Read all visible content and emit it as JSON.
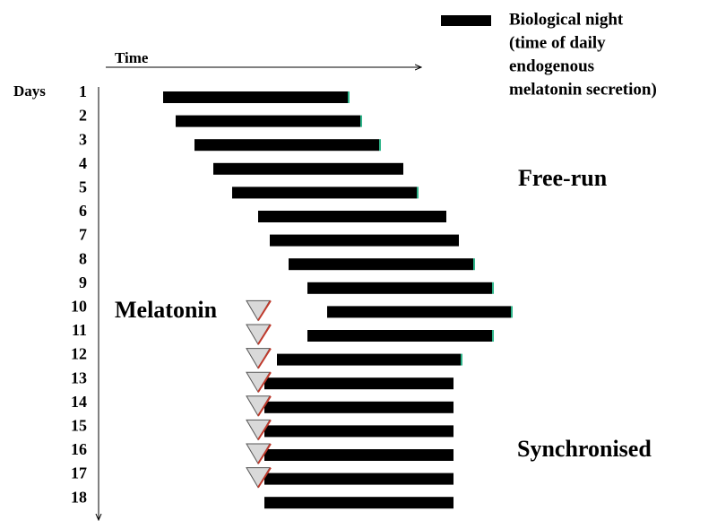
{
  "legend": {
    "label_lines": [
      "Biological night",
      "(time of daily",
      "endogenous",
      "melatonin secretion)"
    ]
  },
  "axes": {
    "time_label": "Time",
    "days_label": "Days"
  },
  "days": [
    "1",
    "2",
    "3",
    "4",
    "5",
    "6",
    "7",
    "8",
    "9",
    "10",
    "11",
    "12",
    "13",
    "14",
    "15",
    "16",
    "17",
    "18"
  ],
  "annotations": {
    "free_run": "Free-run",
    "melatonin": "Melatonin",
    "synchronised": "Synchronised"
  }
}
